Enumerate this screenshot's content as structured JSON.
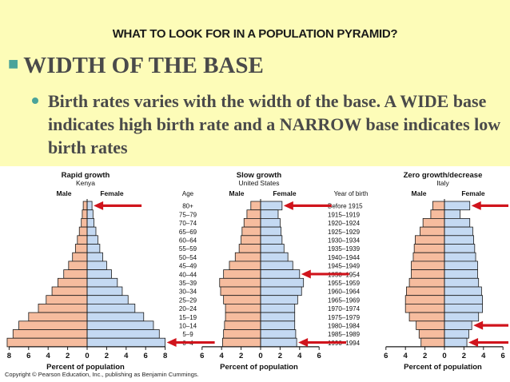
{
  "slide": {
    "title": "WHAT TO LOOK FOR IN A POPULATION PYRAMID?",
    "heading": "WIDTH OF THE BASE",
    "subpoint": "Birth rates varies with the width of the base.  A WIDE base indicates high birth rate and a NARROW base indicates low birth rates"
  },
  "figure": {
    "age_header": "Age",
    "year_header": "Year of birth",
    "male_label": "Male",
    "female_label": "Female",
    "xlabel": "Percent of population",
    "credit": "Copyright © Pearson Education, Inc., publishing as Benjamin Cummings.",
    "colors": {
      "male": "#f6bc9e",
      "female": "#c4d9f2",
      "arrow": "#d0141c",
      "outline": "#1a1a1a"
    }
  },
  "chart_data": [
    {
      "type": "bar",
      "title": "Rapid growth",
      "subtitle": "Kenya",
      "categories": [
        "80+",
        "75–79",
        "70–74",
        "65–69",
        "60–64",
        "55–59",
        "50–54",
        "45–49",
        "40–44",
        "35–39",
        "30–34",
        "25–29",
        "20–24",
        "15–19",
        "10–14",
        "5–9",
        "0–4"
      ],
      "series": [
        {
          "name": "Male",
          "values": [
            0.4,
            0.5,
            0.6,
            0.8,
            1.0,
            1.2,
            1.5,
            1.9,
            2.4,
            3.0,
            3.6,
            4.2,
            5.0,
            6.0,
            7.0,
            7.6,
            8.2
          ]
        },
        {
          "name": "Female",
          "values": [
            0.5,
            0.6,
            0.7,
            0.9,
            1.1,
            1.3,
            1.6,
            2.0,
            2.5,
            3.1,
            3.6,
            4.2,
            4.9,
            5.8,
            6.8,
            7.4,
            8.0
          ]
        }
      ],
      "xticks": [
        "8",
        "6",
        "4",
        "2",
        "0",
        "2",
        "4",
        "6",
        "8"
      ],
      "xlim": [
        -8,
        8
      ],
      "xlabel": "Percent of population"
    },
    {
      "type": "bar",
      "title": "Slow growth",
      "subtitle": "United States",
      "categories": [
        "Before 1915",
        "1915–1919",
        "1920–1924",
        "1925–1929",
        "1930–1934",
        "1935–1939",
        "1940–1944",
        "1945–1949",
        "1950–1954",
        "1955–1959",
        "1960–1964",
        "1965–1969",
        "1970–1974",
        "1975–1979",
        "1980–1984",
        "1985–1989",
        "1990–1994"
      ],
      "series": [
        {
          "name": "Male",
          "values": [
            1.0,
            1.4,
            1.7,
            1.9,
            2.0,
            2.2,
            2.6,
            3.2,
            3.8,
            4.2,
            4.1,
            3.8,
            3.6,
            3.6,
            3.7,
            3.8,
            3.9
          ]
        },
        {
          "name": "Female",
          "values": [
            2.2,
            1.8,
            2.0,
            2.1,
            2.2,
            2.4,
            2.8,
            3.3,
            4.0,
            4.4,
            4.2,
            3.8,
            3.5,
            3.5,
            3.5,
            3.6,
            3.7
          ]
        }
      ],
      "xticks": [
        "6",
        "4",
        "2",
        "0",
        "2",
        "4",
        "6"
      ],
      "xlim": [
        -6,
        6
      ],
      "xlabel": "Percent of population"
    },
    {
      "type": "bar",
      "title": "Zero growth/decrease",
      "subtitle": "Italy",
      "categories": [
        "80+",
        "75–79",
        "70–74",
        "65–69",
        "60–64",
        "55–59",
        "50–54",
        "45–49",
        "40–44",
        "35–39",
        "30–34",
        "25–29",
        "20–24",
        "15–19",
        "10–14",
        "5–9",
        "0–4"
      ],
      "series": [
        {
          "name": "Male",
          "values": [
            1.2,
            1.4,
            2.2,
            2.5,
            3.0,
            3.1,
            3.2,
            3.4,
            3.4,
            3.6,
            3.9,
            4.0,
            4.0,
            3.6,
            2.9,
            2.6,
            2.4
          ]
        },
        {
          "name": "Female",
          "values": [
            2.6,
            1.6,
            2.6,
            2.9,
            3.0,
            3.1,
            3.2,
            3.4,
            3.4,
            3.5,
            3.8,
            3.9,
            3.9,
            3.5,
            2.8,
            2.5,
            2.3
          ]
        }
      ],
      "xticks": [
        "6",
        "4",
        "2",
        "0",
        "2",
        "4",
        "6"
      ],
      "xlim": [
        -6,
        6
      ],
      "xlabel": "Percent of population"
    }
  ]
}
